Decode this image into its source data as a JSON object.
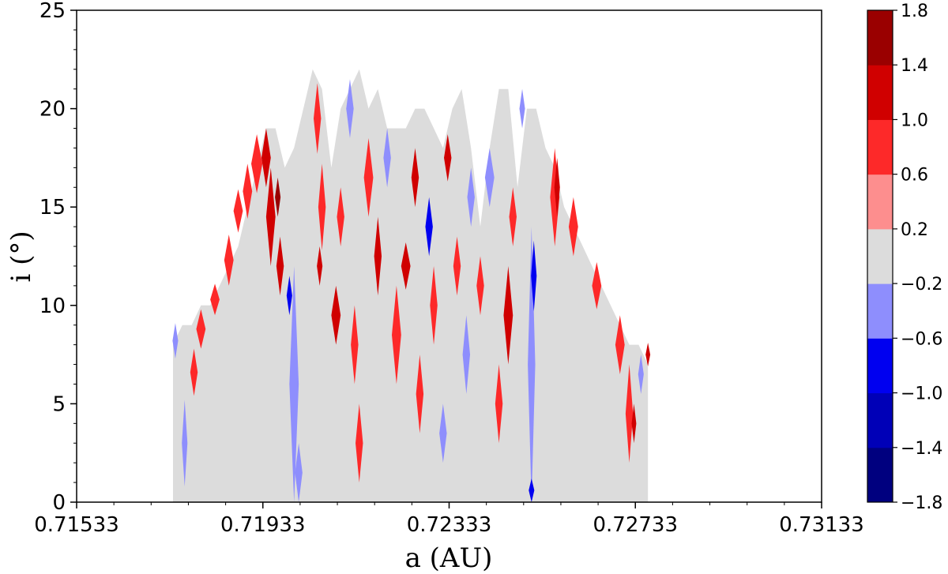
{
  "chart_data": {
    "type": "heatmap",
    "title": "",
    "xlabel": "a (AU)",
    "ylabel": "i (°)",
    "xlim": [
      0.71533,
      0.73133
    ],
    "ylim": [
      0,
      25
    ],
    "x_ticks": [
      "0.71533",
      "0.71933",
      "0.72333",
      "0.72733",
      "0.73133"
    ],
    "y_ticks": [
      "0",
      "5",
      "10",
      "15",
      "20",
      "25"
    ],
    "grid": false,
    "colorbar": {
      "levels": [
        -1.8,
        -1.4,
        -1.0,
        -0.6,
        -0.2,
        0.2,
        0.6,
        1.0,
        1.4,
        1.8
      ],
      "tick_labels": [
        "−1.8",
        "−1.4",
        "−1.0",
        "−0.6",
        "−0.2",
        "0.2",
        "0.6",
        "1.0",
        "1.4",
        "1.8"
      ],
      "colors": [
        "#00007f",
        "#0000b7",
        "#0000f0",
        "#8e8efd",
        "#dcdcdc",
        "#fd8e8e",
        "#fd2929",
        "#d00000",
        "#9a0000"
      ],
      "placement": "right"
    },
    "envelope": [
      [
        0.7174,
        0,
        8
      ],
      [
        0.7176,
        0,
        9
      ],
      [
        0.7178,
        0,
        9
      ],
      [
        0.718,
        0,
        10
      ],
      [
        0.7182,
        0,
        10
      ],
      [
        0.7184,
        0,
        11
      ],
      [
        0.7186,
        0,
        12
      ],
      [
        0.7188,
        0,
        13
      ],
      [
        0.719,
        0,
        15
      ],
      [
        0.7192,
        0,
        17
      ],
      [
        0.7194,
        0,
        19
      ],
      [
        0.7196,
        0,
        19
      ],
      [
        0.7198,
        0,
        17
      ],
      [
        0.72,
        0,
        18
      ],
      [
        0.7202,
        0,
        20
      ],
      [
        0.7204,
        0,
        22
      ],
      [
        0.7206,
        0,
        21
      ],
      [
        0.7208,
        0,
        17
      ],
      [
        0.721,
        0,
        20
      ],
      [
        0.7212,
        0,
        21
      ],
      [
        0.7214,
        0,
        22
      ],
      [
        0.7216,
        0,
        20
      ],
      [
        0.7218,
        0,
        21
      ],
      [
        0.722,
        0,
        19
      ],
      [
        0.7222,
        0,
        19
      ],
      [
        0.7224,
        0,
        19
      ],
      [
        0.7226,
        0,
        20
      ],
      [
        0.7228,
        0,
        20
      ],
      [
        0.723,
        0,
        19
      ],
      [
        0.7232,
        0,
        18
      ],
      [
        0.7234,
        0,
        20
      ],
      [
        0.7236,
        0,
        21
      ],
      [
        0.7238,
        0,
        18
      ],
      [
        0.724,
        0,
        14
      ],
      [
        0.7242,
        0,
        18
      ],
      [
        0.7244,
        0,
        21
      ],
      [
        0.7246,
        0,
        21
      ],
      [
        0.7248,
        0,
        16
      ],
      [
        0.725,
        0,
        20
      ],
      [
        0.7252,
        0,
        20
      ],
      [
        0.7254,
        0,
        18
      ],
      [
        0.7256,
        0,
        17
      ],
      [
        0.7258,
        0,
        15
      ],
      [
        0.726,
        0,
        14
      ],
      [
        0.7262,
        0,
        13
      ],
      [
        0.7264,
        0,
        12
      ],
      [
        0.7266,
        0,
        11
      ],
      [
        0.7268,
        0,
        10
      ],
      [
        0.727,
        0,
        9
      ],
      [
        0.7272,
        0,
        8
      ],
      [
        0.7274,
        0,
        8
      ],
      [
        0.7276,
        0,
        7
      ]
    ],
    "anomalies": [
      {
        "a": 0.71745,
        "i": 8.2,
        "ra": 6e-05,
        "ri": 0.9,
        "level": -0.6
      },
      {
        "a": 0.71765,
        "i": 3.0,
        "ra": 6e-05,
        "ri": 2.2,
        "level": -0.6
      },
      {
        "a": 0.71785,
        "i": 6.6,
        "ra": 8e-05,
        "ri": 1.2,
        "level": 0.6
      },
      {
        "a": 0.718,
        "i": 8.8,
        "ra": 0.0001,
        "ri": 1.0,
        "level": 0.6
      },
      {
        "a": 0.7183,
        "i": 10.3,
        "ra": 0.0001,
        "ri": 0.8,
        "level": 0.6
      },
      {
        "a": 0.7186,
        "i": 12.3,
        "ra": 0.0001,
        "ri": 1.3,
        "level": 0.6
      },
      {
        "a": 0.7188,
        "i": 14.8,
        "ra": 0.0001,
        "ri": 1.1,
        "level": 0.6
      },
      {
        "a": 0.719,
        "i": 15.8,
        "ra": 0.0001,
        "ri": 1.4,
        "level": 0.6
      },
      {
        "a": 0.7192,
        "i": 17.2,
        "ra": 0.00012,
        "ri": 1.5,
        "level": 0.6
      },
      {
        "a": 0.7194,
        "i": 17.5,
        "ra": 0.0001,
        "ri": 1.5,
        "level": 1.0
      },
      {
        "a": 0.7195,
        "i": 14.5,
        "ra": 0.0001,
        "ri": 2.5,
        "level": 1.0
      },
      {
        "a": 0.7197,
        "i": 12.0,
        "ra": 8e-05,
        "ri": 1.5,
        "level": 1.0
      },
      {
        "a": 0.71965,
        "i": 15.5,
        "ra": 6e-05,
        "ri": 1.0,
        "level": 1.4
      },
      {
        "a": 0.72,
        "i": 6.0,
        "ra": 0.0001,
        "ri": 6.0,
        "level": -0.6
      },
      {
        "a": 0.7201,
        "i": 1.5,
        "ra": 8e-05,
        "ri": 1.5,
        "level": -0.6
      },
      {
        "a": 0.7199,
        "i": 10.5,
        "ra": 6e-05,
        "ri": 1.0,
        "level": -1.0
      },
      {
        "a": 0.7205,
        "i": 19.5,
        "ra": 8e-05,
        "ri": 1.8,
        "level": 0.6
      },
      {
        "a": 0.7206,
        "i": 15.0,
        "ra": 8e-05,
        "ri": 2.2,
        "level": 0.6
      },
      {
        "a": 0.72055,
        "i": 12.0,
        "ra": 6e-05,
        "ri": 1.0,
        "level": 1.0
      },
      {
        "a": 0.7209,
        "i": 9.5,
        "ra": 0.0001,
        "ri": 1.5,
        "level": 1.0
      },
      {
        "a": 0.721,
        "i": 14.5,
        "ra": 8e-05,
        "ri": 1.5,
        "level": 0.6
      },
      {
        "a": 0.7212,
        "i": 20.0,
        "ra": 8e-05,
        "ri": 1.5,
        "level": -0.6
      },
      {
        "a": 0.7213,
        "i": 8.0,
        "ra": 8e-05,
        "ri": 2.0,
        "level": 0.6
      },
      {
        "a": 0.7214,
        "i": 3.0,
        "ra": 8e-05,
        "ri": 2.0,
        "level": 0.6
      },
      {
        "a": 0.7216,
        "i": 16.5,
        "ra": 0.0001,
        "ri": 2.0,
        "level": 0.6
      },
      {
        "a": 0.7218,
        "i": 12.5,
        "ra": 8e-05,
        "ri": 2.0,
        "level": 1.0
      },
      {
        "a": 0.722,
        "i": 17.5,
        "ra": 8e-05,
        "ri": 1.5,
        "level": -0.6
      },
      {
        "a": 0.7222,
        "i": 8.5,
        "ra": 0.0001,
        "ri": 2.5,
        "level": 0.6
      },
      {
        "a": 0.7224,
        "i": 12.0,
        "ra": 0.0001,
        "ri": 1.2,
        "level": 1.0
      },
      {
        "a": 0.7226,
        "i": 16.5,
        "ra": 8e-05,
        "ri": 1.5,
        "level": 1.0
      },
      {
        "a": 0.7227,
        "i": 5.5,
        "ra": 8e-05,
        "ri": 2.0,
        "level": 0.6
      },
      {
        "a": 0.7229,
        "i": 14.0,
        "ra": 8e-05,
        "ri": 1.5,
        "level": -1.0
      },
      {
        "a": 0.723,
        "i": 10.0,
        "ra": 8e-05,
        "ri": 2.0,
        "level": 0.6
      },
      {
        "a": 0.7232,
        "i": 3.5,
        "ra": 8e-05,
        "ri": 1.5,
        "level": -0.6
      },
      {
        "a": 0.7233,
        "i": 17.5,
        "ra": 8e-05,
        "ri": 1.2,
        "level": 1.0
      },
      {
        "a": 0.7235,
        "i": 12.0,
        "ra": 8e-05,
        "ri": 1.5,
        "level": 0.6
      },
      {
        "a": 0.7237,
        "i": 7.5,
        "ra": 8e-05,
        "ri": 2.0,
        "level": -0.6
      },
      {
        "a": 0.7238,
        "i": 15.5,
        "ra": 8e-05,
        "ri": 1.5,
        "level": -0.6
      },
      {
        "a": 0.724,
        "i": 11.0,
        "ra": 8e-05,
        "ri": 1.5,
        "level": 0.6
      },
      {
        "a": 0.7242,
        "i": 16.5,
        "ra": 0.0001,
        "ri": 1.5,
        "level": -0.6
      },
      {
        "a": 0.7244,
        "i": 5.0,
        "ra": 8e-05,
        "ri": 2.0,
        "level": 0.6
      },
      {
        "a": 0.7246,
        "i": 9.5,
        "ra": 0.0001,
        "ri": 2.5,
        "level": 1.0
      },
      {
        "a": 0.7247,
        "i": 14.5,
        "ra": 8e-05,
        "ri": 1.5,
        "level": 0.6
      },
      {
        "a": 0.7249,
        "i": 20.0,
        "ra": 6e-05,
        "ri": 1.0,
        "level": -0.6
      },
      {
        "a": 0.7251,
        "i": 7.0,
        "ra": 8e-05,
        "ri": 7.0,
        "level": -0.6
      },
      {
        "a": 0.72515,
        "i": 11.5,
        "ra": 6e-05,
        "ri": 1.8,
        "level": -1.0
      },
      {
        "a": 0.7251,
        "i": 0.6,
        "ra": 6e-05,
        "ri": 0.6,
        "level": -1.0
      },
      {
        "a": 0.7256,
        "i": 15.5,
        "ra": 0.0001,
        "ri": 2.5,
        "level": 0.6
      },
      {
        "a": 0.72565,
        "i": 16.0,
        "ra": 6e-05,
        "ri": 1.5,
        "level": 1.0
      },
      {
        "a": 0.726,
        "i": 14.0,
        "ra": 0.0001,
        "ri": 1.5,
        "level": 0.6
      },
      {
        "a": 0.7265,
        "i": 11.0,
        "ra": 0.0001,
        "ri": 1.2,
        "level": 0.6
      },
      {
        "a": 0.727,
        "i": 8.0,
        "ra": 0.0001,
        "ri": 1.5,
        "level": 0.6
      },
      {
        "a": 0.7272,
        "i": 4.5,
        "ra": 8e-05,
        "ri": 2.5,
        "level": 0.6
      },
      {
        "a": 0.7273,
        "i": 4.0,
        "ra": 5e-05,
        "ri": 1.0,
        "level": 1.0
      },
      {
        "a": 0.72745,
        "i": 6.5,
        "ra": 6e-05,
        "ri": 1.0,
        "level": -0.6
      },
      {
        "a": 0.7276,
        "i": 7.5,
        "ra": 5e-05,
        "ri": 0.6,
        "level": 1.0
      }
    ]
  }
}
